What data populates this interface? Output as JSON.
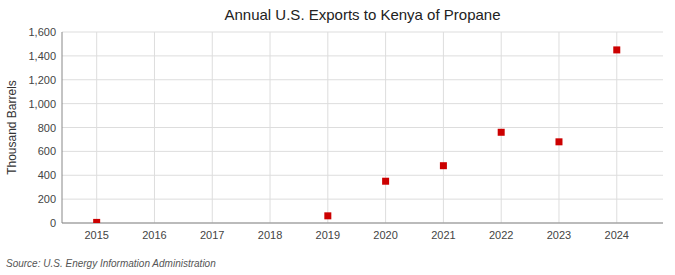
{
  "chart_data": {
    "type": "scatter",
    "title": "Annual U.S. Exports to Kenya of Propane",
    "y_label": "Thousand Barrels",
    "source": "Source: U.S. Energy Information Administration",
    "x": [
      2015,
      2016,
      2017,
      2018,
      2019,
      2020,
      2021,
      2022,
      2023,
      2024
    ],
    "values": [
      5,
      null,
      null,
      null,
      60,
      350,
      480,
      760,
      680,
      1450
    ],
    "color": "#cc0000",
    "marker": "square",
    "grid": true,
    "xlim": [
      2014.4,
      2024.8
    ],
    "xticks": [
      2015,
      2016,
      2017,
      2018,
      2019,
      2020,
      2021,
      2022,
      2023,
      2024
    ],
    "ylim": [
      0,
      1600
    ],
    "yticks": [
      0,
      200,
      400,
      600,
      800,
      {
        "value": 1000,
        "label": "1,000"
      },
      {
        "value": 1200,
        "label": "1,200"
      },
      {
        "value": 1400,
        "label": "1,400"
      },
      {
        "value": 1600,
        "label": "1,600"
      }
    ]
  }
}
